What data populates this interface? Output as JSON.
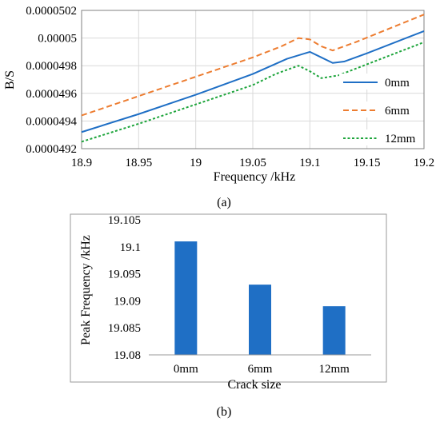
{
  "figure": {
    "panel_labels": [
      "(a)",
      "(b)"
    ]
  },
  "chart_data": [
    {
      "type": "line",
      "panel_label": "(a)",
      "xlabel": "Frequency /kHz",
      "ylabel": "B/S",
      "xlim": [
        18.9,
        19.2
      ],
      "ylim": [
        4.92e-05,
        5.02e-05
      ],
      "x_ticks": [
        18.9,
        18.95,
        19,
        19.05,
        19.1,
        19.15,
        19.2
      ],
      "x_tick_labels": [
        "18.9",
        "18.95",
        "19",
        "19.05",
        "19.1",
        "19.15",
        "19.2"
      ],
      "y_ticks": [
        4.92e-05,
        4.94e-05,
        4.96e-05,
        4.98e-05,
        5e-05,
        5.02e-05
      ],
      "y_tick_labels": [
        "0.0000492",
        "0.0000494",
        "0.0000496",
        "0.0000498",
        "0.00005",
        "0.0000502"
      ],
      "grid": true,
      "legend_position": "right",
      "series": [
        {
          "name": "0mm",
          "color": "#1f6fc5",
          "dash": "solid",
          "x": [
            18.9,
            18.95,
            19.0,
            19.05,
            19.08,
            19.1,
            19.11,
            19.12,
            19.13,
            19.15,
            19.2
          ],
          "y": [
            4.932e-05,
            4.945e-05,
            4.959e-05,
            4.974e-05,
            4.985e-05,
            4.99e-05,
            4.986e-05,
            4.982e-05,
            4.983e-05,
            4.989e-05,
            5.005e-05
          ]
        },
        {
          "name": "6mm",
          "color": "#ed7d31",
          "dash": "dashed",
          "x": [
            18.9,
            18.95,
            19.0,
            19.05,
            19.075,
            19.09,
            19.1,
            19.11,
            19.12,
            19.14,
            19.2
          ],
          "y": [
            4.944e-05,
            4.958e-05,
            4.972e-05,
            4.986e-05,
            4.994e-05,
            5e-05,
            4.999e-05,
            4.994e-05,
            4.991e-05,
            4.997e-05,
            5.017e-05
          ]
        },
        {
          "name": "12mm",
          "color": "#1ea53c",
          "dash": "dotted",
          "x": [
            18.9,
            18.95,
            19.0,
            19.05,
            19.07,
            19.09,
            19.1,
            19.11,
            19.125,
            19.15,
            19.2
          ],
          "y": [
            4.925e-05,
            4.938e-05,
            4.952e-05,
            4.966e-05,
            4.974e-05,
            4.98e-05,
            4.976e-05,
            4.971e-05,
            4.973e-05,
            4.981e-05,
            4.997e-05
          ]
        }
      ]
    },
    {
      "type": "bar",
      "panel_label": "(b)",
      "xlabel": "Crack size",
      "ylabel": "Peak Frequency /kHz",
      "categories": [
        "0mm",
        "6mm",
        "12mm"
      ],
      "values": [
        19.101,
        19.093,
        19.089
      ],
      "ylim": [
        19.08,
        19.105
      ],
      "y_ticks": [
        19.08,
        19.085,
        19.09,
        19.095,
        19.1,
        19.105
      ],
      "y_tick_labels": [
        "19.08",
        "19.085",
        "19.09",
        "19.095",
        "19.1",
        "19.105"
      ],
      "color": "#1f6fc5",
      "grid": false
    }
  ]
}
